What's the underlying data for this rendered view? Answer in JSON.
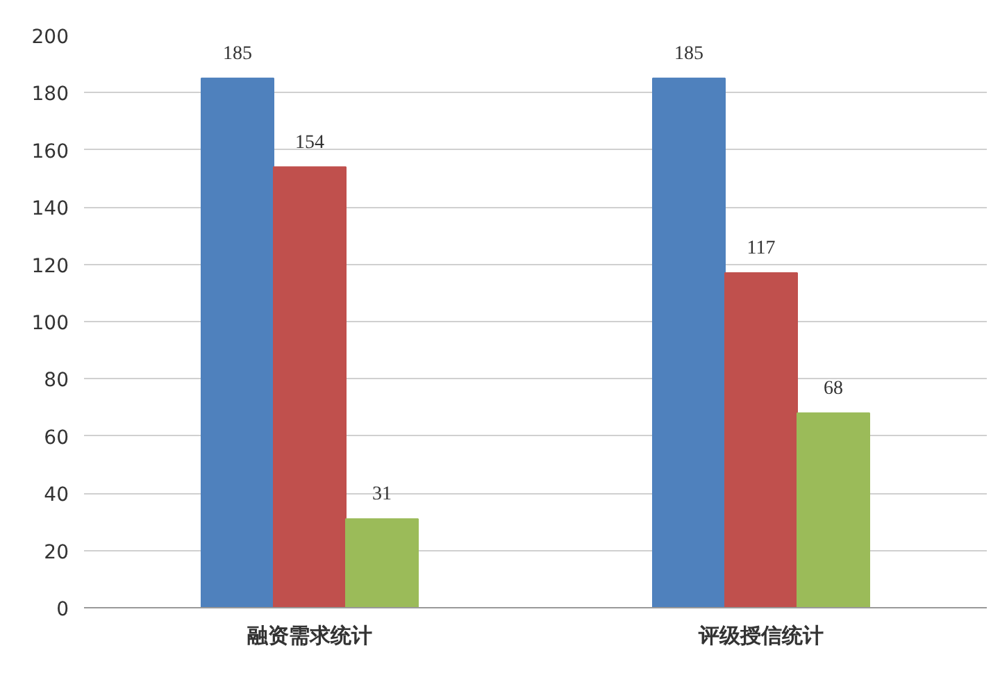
{
  "chart_data": {
    "type": "bar",
    "categories": [
      "融资需求统计",
      "评级授信统计"
    ],
    "series": [
      {
        "color": "#4f81bd",
        "values": [
          185,
          185
        ]
      },
      {
        "color": "#c0504d",
        "values": [
          154,
          117
        ]
      },
      {
        "color": "#9bbb59",
        "values": [
          31,
          68
        ]
      }
    ],
    "ylim": [
      0,
      200
    ],
    "yticks": [
      0,
      20,
      40,
      60,
      80,
      100,
      120,
      140,
      160,
      180,
      200
    ],
    "grid": "y",
    "data_labels": true
  }
}
